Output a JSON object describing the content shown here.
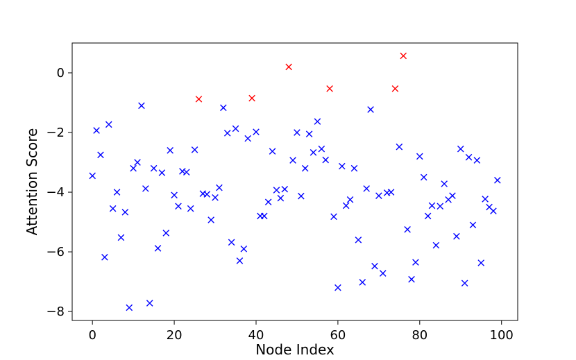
{
  "chart_data": {
    "type": "scatter",
    "title": "",
    "xlabel": "Node Index",
    "ylabel": "Attention Score",
    "xlim": [
      -4.95,
      103.95
    ],
    "ylim": [
      -8.3,
      1.0
    ],
    "xticks": [
      0,
      20,
      40,
      60,
      80,
      100
    ],
    "yticks": [
      -8,
      -6,
      -4,
      -2,
      0
    ],
    "xtick_labels": [
      "0",
      "20",
      "40",
      "60",
      "80",
      "100"
    ],
    "ytick_labels": [
      "−8",
      "−6",
      "−4",
      "−2",
      "0"
    ],
    "grid": false,
    "legend": "none",
    "marker": "x",
    "colors": {
      "normal": "#0000ff",
      "highlighted": "#ff0000"
    },
    "series": [
      {
        "color": "#0000ff",
        "points": [
          [
            0,
            -3.45
          ],
          [
            1,
            -1.93
          ],
          [
            2,
            -2.75
          ],
          [
            3,
            -6.18
          ],
          [
            4,
            -1.73
          ],
          [
            5,
            -4.55
          ],
          [
            6,
            -4.0
          ],
          [
            7,
            -5.52
          ],
          [
            8,
            -4.67
          ],
          [
            9,
            -7.87
          ],
          [
            10,
            -3.2
          ],
          [
            11,
            -3.0
          ],
          [
            12,
            -1.1
          ],
          [
            13,
            -3.88
          ],
          [
            14,
            -7.72
          ],
          [
            15,
            -3.2
          ],
          [
            16,
            -5.88
          ],
          [
            17,
            -3.35
          ],
          [
            18,
            -5.37
          ],
          [
            19,
            -2.6
          ],
          [
            20,
            -4.1
          ],
          [
            21,
            -4.47
          ],
          [
            22,
            -3.3
          ],
          [
            23,
            -3.33
          ],
          [
            24,
            -4.55
          ],
          [
            25,
            -2.58
          ],
          [
            27,
            -4.05
          ],
          [
            28,
            -4.07
          ],
          [
            29,
            -4.93
          ],
          [
            30,
            -4.18
          ],
          [
            31,
            -3.85
          ],
          [
            32,
            -1.17
          ],
          [
            33,
            -2.02
          ],
          [
            34,
            -5.68
          ],
          [
            35,
            -1.87
          ],
          [
            36,
            -6.3
          ],
          [
            37,
            -5.9
          ],
          [
            38,
            -2.2
          ],
          [
            40,
            -1.98
          ],
          [
            41,
            -4.8
          ],
          [
            42,
            -4.8
          ],
          [
            43,
            -4.33
          ],
          [
            44,
            -2.63
          ],
          [
            45,
            -3.93
          ],
          [
            46,
            -4.2
          ],
          [
            47,
            -3.9
          ],
          [
            49,
            -2.93
          ],
          [
            50,
            -2.0
          ],
          [
            51,
            -4.13
          ],
          [
            52,
            -3.2
          ],
          [
            53,
            -2.05
          ],
          [
            54,
            -2.67
          ],
          [
            55,
            -1.63
          ],
          [
            56,
            -2.55
          ],
          [
            57,
            -2.92
          ],
          [
            59,
            -4.82
          ],
          [
            60,
            -7.2
          ],
          [
            61,
            -3.13
          ],
          [
            62,
            -4.45
          ],
          [
            63,
            -4.25
          ],
          [
            64,
            -3.2
          ],
          [
            65,
            -5.6
          ],
          [
            66,
            -7.02
          ],
          [
            67,
            -3.88
          ],
          [
            68,
            -1.23
          ],
          [
            69,
            -6.48
          ],
          [
            70,
            -4.12
          ],
          [
            71,
            -6.72
          ],
          [
            72,
            -4.02
          ],
          [
            73,
            -4.0
          ],
          [
            75,
            -2.48
          ],
          [
            77,
            -5.25
          ],
          [
            78,
            -6.92
          ],
          [
            79,
            -6.35
          ],
          [
            80,
            -2.8
          ],
          [
            81,
            -3.5
          ],
          [
            82,
            -4.8
          ],
          [
            83,
            -4.45
          ],
          [
            84,
            -5.78
          ],
          [
            85,
            -4.47
          ],
          [
            86,
            -3.72
          ],
          [
            87,
            -4.25
          ],
          [
            88,
            -4.12
          ],
          [
            89,
            -5.48
          ],
          [
            90,
            -2.55
          ],
          [
            91,
            -7.05
          ],
          [
            92,
            -2.83
          ],
          [
            93,
            -5.1
          ],
          [
            94,
            -2.93
          ],
          [
            95,
            -6.37
          ],
          [
            96,
            -4.23
          ],
          [
            97,
            -4.5
          ],
          [
            98,
            -4.63
          ],
          [
            99,
            -3.6
          ]
        ]
      },
      {
        "color": "#ff0000",
        "points": [
          [
            26,
            -0.88
          ],
          [
            39,
            -0.85
          ],
          [
            48,
            0.2
          ],
          [
            58,
            -0.53
          ],
          [
            74,
            -0.53
          ],
          [
            76,
            0.57
          ]
        ]
      }
    ]
  }
}
